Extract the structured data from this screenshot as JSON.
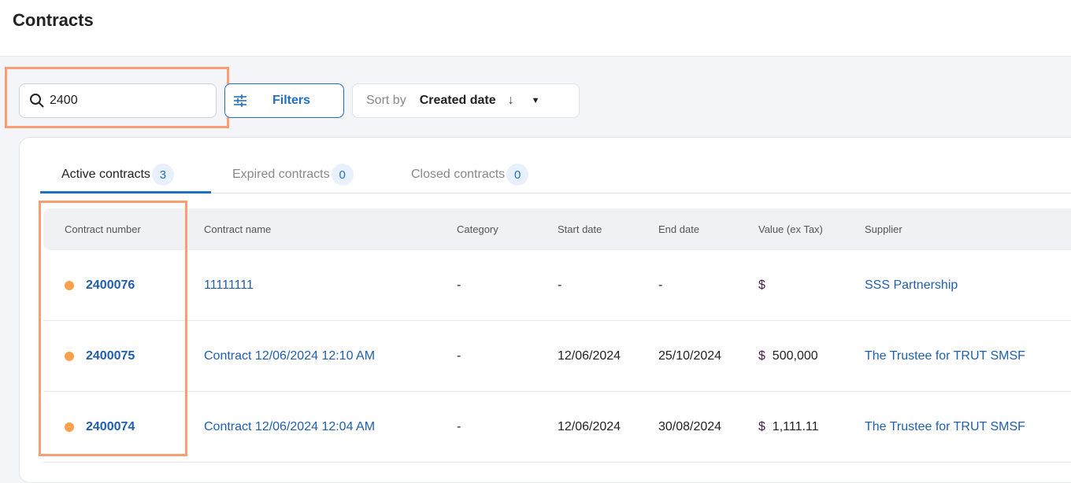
{
  "header": {
    "title": "Contracts"
  },
  "search": {
    "value": "2400",
    "placeholder": ""
  },
  "toolbar": {
    "filters_label": "Filters",
    "sort_prefix": "Sort by",
    "sort_value": "Created date",
    "sort_direction": "↓"
  },
  "tabs": [
    {
      "label": "Active contracts",
      "count": "3",
      "active": true
    },
    {
      "label": "Expired contracts",
      "count": "0"
    },
    {
      "label": "Closed contracts",
      "count": "0"
    }
  ],
  "table": {
    "columns": [
      "Contract number",
      "Contract name",
      "Category",
      "Start date",
      "End date",
      "Value (ex Tax)",
      "Supplier"
    ],
    "rows": [
      {
        "number": "2400076",
        "name": "11111111",
        "category": "-",
        "start": "-",
        "end": "-",
        "currency": "$",
        "value": "",
        "supplier": "SSS Partnership",
        "status_color": "#fca24e"
      },
      {
        "number": "2400075",
        "name": "Contract 12/06/2024 12:10 AM",
        "category": "-",
        "start": "12/06/2024",
        "end": "25/10/2024",
        "currency": "$",
        "value": "500,000",
        "supplier": "The Trustee for TRUT SMSF",
        "status_color": "#fca24e"
      },
      {
        "number": "2400074",
        "name": "Contract 12/06/2024 12:04 AM",
        "category": "-",
        "start": "12/06/2024",
        "end": "30/08/2024",
        "currency": "$",
        "value": "1,111.11",
        "supplier": "The Trustee for TRUT SMSF",
        "status_color": "#fca24e"
      }
    ]
  },
  "colors": {
    "accent": "#1f6fc5",
    "highlight": "#fa9e72",
    "status": "#fca24e"
  }
}
